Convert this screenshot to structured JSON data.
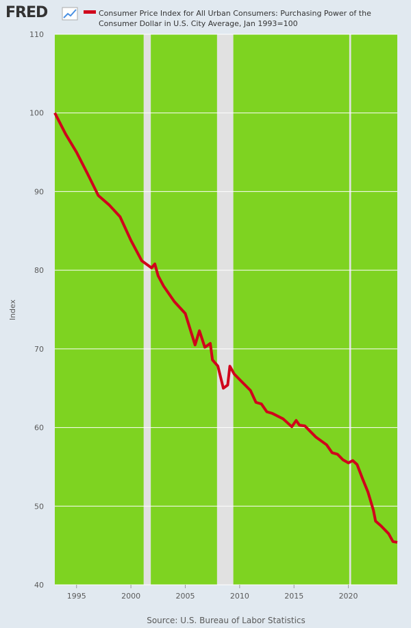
{
  "logo": "FRED",
  "chart_data": {
    "type": "line",
    "title": "Consumer Price Index for All Urban Consumers: Purchasing Power of the Consumer Dollar in U.S. City Average, Jan 1993=100",
    "y_label": "Index",
    "source": "Source: U.S. Bureau of Labor Statistics",
    "xlim": [
      1993,
      2024.5
    ],
    "ylim": [
      40,
      110
    ],
    "xticks": [
      1995,
      2000,
      2005,
      2010,
      2015,
      2020
    ],
    "yticks": [
      40,
      50,
      60,
      70,
      80,
      90,
      100,
      110
    ],
    "grid": true,
    "background": "#7ed321",
    "recession_color": "#e1e1e1",
    "recessions": [
      [
        2001.17,
        2001.83
      ],
      [
        2007.92,
        2009.42
      ],
      [
        2020.08,
        2020.25
      ]
    ],
    "series": [
      {
        "name": "Consumer Price Index for All Urban Consumers: Purchasing Power of the Consumer Dollar in U.S. City Average, Jan 1993=100",
        "color": "#d0021b",
        "x": [
          1993,
          1994,
          1995,
          1996,
          1997,
          1998,
          1999,
          2000,
          2001,
          2001.9,
          2002.2,
          2002.5,
          2003,
          2004,
          2005,
          2005.9,
          2006.3,
          2006.8,
          2007.3,
          2007.5,
          2008,
          2008.5,
          2008.9,
          2009.1,
          2009.5,
          2010,
          2011,
          2011.5,
          2012,
          2012.5,
          2013,
          2014,
          2014.8,
          2015.2,
          2015.5,
          2016,
          2016.5,
          2017,
          2018,
          2018.5,
          2019,
          2019.5,
          2020,
          2020.4,
          2020.8,
          2021.3,
          2021.8,
          2022.3,
          2022.5,
          2023,
          2023.7,
          2024.1,
          2024.5
        ],
        "values": [
          100,
          97.3,
          95,
          92.3,
          89.5,
          88.3,
          86.8,
          83.8,
          81.2,
          80.3,
          80.8,
          79.3,
          78,
          76,
          74.5,
          70.5,
          72.3,
          70.2,
          70.7,
          68.6,
          67.8,
          65,
          65.4,
          67.8,
          66.8,
          66.1,
          64.7,
          63.2,
          63,
          62,
          61.8,
          61.1,
          60.1,
          60.9,
          60.3,
          60.2,
          59.5,
          58.8,
          57.8,
          56.8,
          56.6,
          55.9,
          55.5,
          55.8,
          55.3,
          53.5,
          51.8,
          49.5,
          48.1,
          47.5,
          46.5,
          45.5,
          45.4
        ]
      }
    ]
  }
}
